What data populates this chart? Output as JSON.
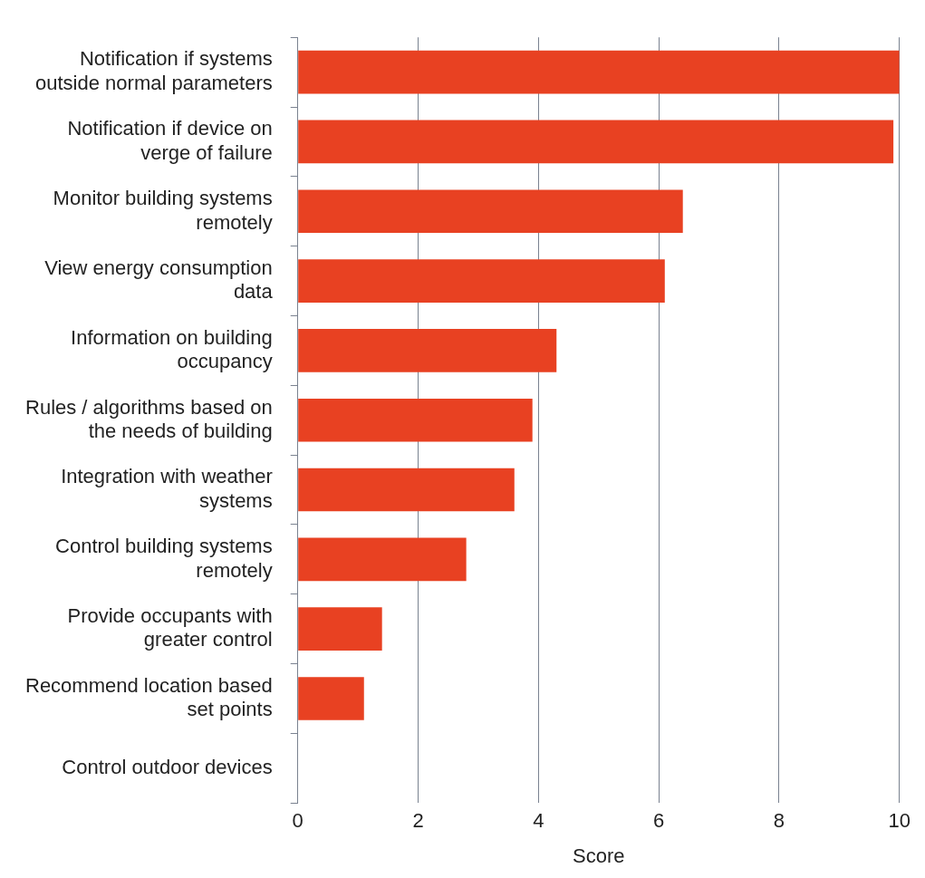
{
  "chart_data": {
    "type": "bar",
    "orientation": "horizontal",
    "xlabel": "Score",
    "categories": [
      "Notification if systems outside normal parameters",
      "Notification if device on verge of failure",
      "Monitor building systems remotely",
      "View energy consumption data",
      "Information on building occupancy",
      "Rules / algorithms based on the needs of building",
      "Integration with weather systems",
      "Control building systems remotely",
      "Provide occupants with greater control",
      "Recommend location based set points",
      "Control outdoor devices"
    ],
    "values": [
      10,
      9.9,
      6.4,
      6.1,
      4.3,
      3.9,
      3.6,
      2.8,
      1.4,
      1.1,
      0
    ],
    "color": "#e84122",
    "xlim": [
      0,
      10
    ],
    "xticks": [
      0,
      2,
      4,
      6,
      8,
      10
    ],
    "grid": "x",
    "legend": false
  }
}
